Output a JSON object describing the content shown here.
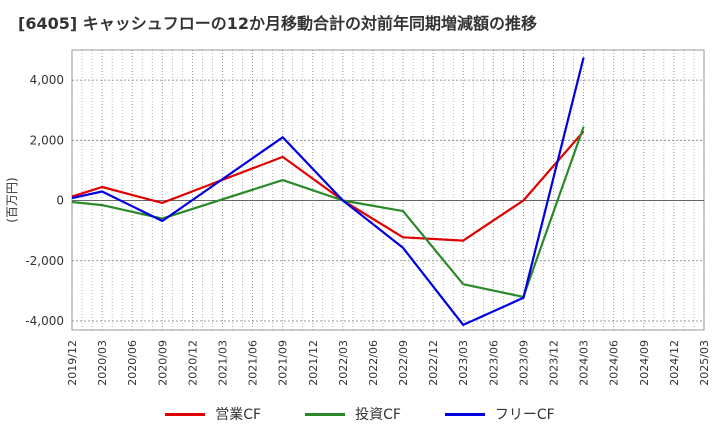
{
  "chart_data": {
    "type": "line",
    "title": "[6405]  キャッシュフローの12か月移動合計の対前年同期増減額の推移",
    "ylabel": "(百万円)",
    "xlabel": "",
    "ylim": [
      -4300,
      5000
    ],
    "y_ticks": [
      4000,
      2000,
      0,
      -2000,
      -4000
    ],
    "y_tick_labels": [
      "4,000",
      "2,000",
      "0",
      "-2,000",
      "-4,000"
    ],
    "x": [
      "2019/12",
      "2020/03",
      "2020/06",
      "2020/09",
      "2020/12",
      "2021/03",
      "2021/06",
      "2021/09",
      "2021/12",
      "2022/03",
      "2022/06",
      "2022/09",
      "2022/12",
      "2023/03",
      "2023/06",
      "2023/09",
      "2023/12",
      "2024/03",
      "2024/06",
      "2024/09",
      "2024/12",
      "2025/03"
    ],
    "grid": true,
    "legend_position": "bottom",
    "series": [
      {
        "name": "営業CF",
        "color": "#e00000",
        "points": [
          [
            "2019/12",
            130
          ],
          [
            "2020/03",
            450
          ],
          [
            "2020/09",
            -80
          ],
          [
            "2021/09",
            1450
          ],
          [
            "2022/03",
            0
          ],
          [
            "2022/09",
            -1220
          ],
          [
            "2023/03",
            -1330
          ],
          [
            "2023/09",
            0
          ],
          [
            "2024/03",
            2300
          ]
        ]
      },
      {
        "name": "投資CF",
        "color": "#2a8a2a",
        "points": [
          [
            "2019/12",
            -50
          ],
          [
            "2020/03",
            -150
          ],
          [
            "2020/09",
            -600
          ],
          [
            "2021/09",
            680
          ],
          [
            "2022/03",
            0
          ],
          [
            "2022/09",
            -350
          ],
          [
            "2023/03",
            -2780
          ],
          [
            "2023/09",
            -3200
          ],
          [
            "2024/03",
            2450
          ]
        ]
      },
      {
        "name": "フリーCF",
        "color": "#0000e0",
        "points": [
          [
            "2019/12",
            80
          ],
          [
            "2020/03",
            300
          ],
          [
            "2020/09",
            -680
          ],
          [
            "2021/09",
            2100
          ],
          [
            "2022/03",
            0
          ],
          [
            "2022/09",
            -1570
          ],
          [
            "2023/03",
            -4130
          ],
          [
            "2023/09",
            -3230
          ],
          [
            "2024/03",
            4750
          ]
        ]
      }
    ]
  }
}
